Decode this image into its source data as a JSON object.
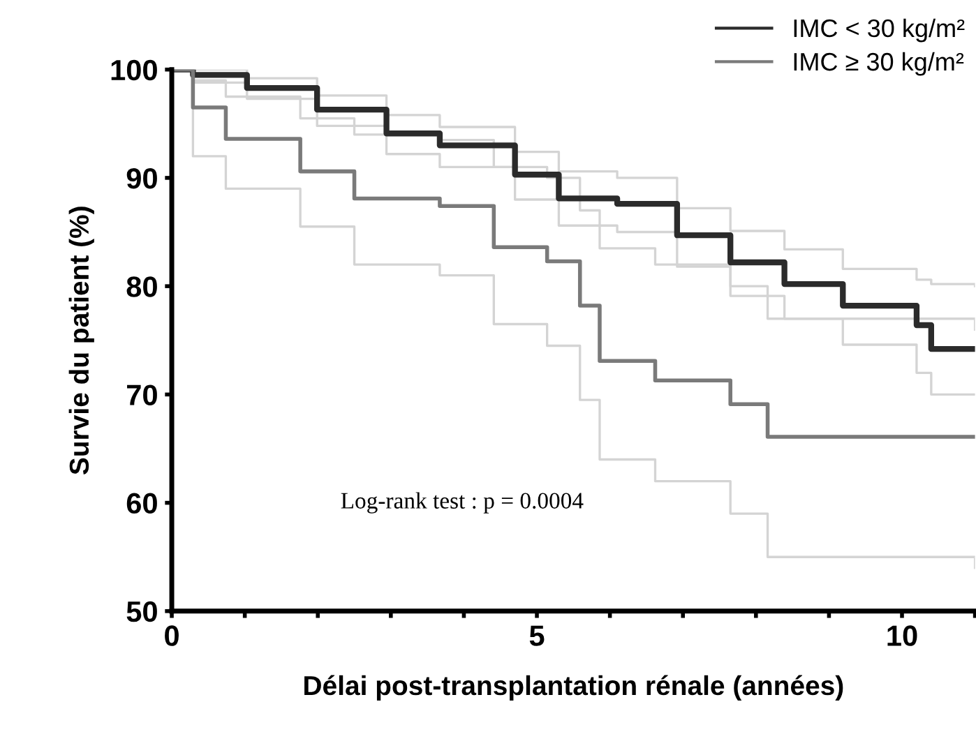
{
  "chart_data": {
    "type": "step",
    "ylabel": "Survie du patient (%)",
    "xlabel": "Délai post-transplantation rénale (années)",
    "annotations": [
      "Log-rank test : p = 0.0004"
    ],
    "xlim": [
      0,
      11
    ],
    "ylim": [
      50,
      100
    ],
    "xticks": [
      0,
      {
        "value": 1,
        "label": null
      },
      {
        "value": 2,
        "label": null
      },
      {
        "value": 3,
        "label": null
      },
      {
        "value": 4,
        "label": null
      },
      5,
      {
        "value": 6,
        "label": null
      },
      {
        "value": 7,
        "label": null
      },
      {
        "value": 8,
        "label": null
      },
      {
        "value": 9,
        "label": null
      },
      10,
      {
        "value": 11,
        "label": null
      }
    ],
    "yticks": [
      50,
      60,
      70,
      80,
      90,
      100
    ],
    "grid": false,
    "legend": "top right",
    "marker": "none",
    "line_style": "solid",
    "series": [
      {
        "color": "#d4d4d4",
        "x": [
          0,
          0.29,
          1.03,
          1.99,
          2.94,
          3.67,
          4.7,
          5.3,
          6.1,
          6.92,
          7.65,
          8.39,
          9.19,
          10.15,
          10.2,
          10.4,
          11
        ],
        "values": [
          100,
          100,
          99.2,
          97.6,
          95.8,
          94.7,
          92.4,
          90.6,
          90.0,
          87.2,
          85.1,
          83.4,
          81.6,
          81.6,
          80.6,
          80.2,
          80
        ]
      },
      {
        "color": "#d4d4d4",
        "x": [
          0,
          0.29,
          1.03,
          1.99,
          2.94,
          3.67,
          4.7,
          5.3,
          6.1,
          6.92,
          7.65,
          8.39,
          9.19,
          10.15,
          10.2,
          10.4,
          11
        ],
        "values": [
          100,
          98.8,
          97.3,
          94.8,
          92.2,
          91.0,
          88.0,
          85.6,
          85.0,
          81.8,
          79.1,
          77.0,
          74.6,
          74.6,
          72,
          70,
          70
        ]
      },
      {
        "color": "#d4d4d4",
        "x": [
          0,
          0.29,
          0.74,
          1.24,
          1.76,
          2.5,
          3.67,
          4.41,
          5.14,
          5.59,
          5.86,
          6.62,
          7.65,
          8.16,
          11
        ],
        "values": [
          100,
          99,
          97.5,
          97.5,
          95.5,
          94,
          93.5,
          91,
          90,
          87,
          83.5,
          82,
          80,
          77,
          76
        ]
      },
      {
        "color": "#d4d4d4",
        "x": [
          0,
          0.29,
          0.74,
          1.24,
          1.76,
          2.5,
          3.67,
          4.41,
          5.14,
          5.59,
          5.86,
          6.62,
          7.65,
          8.16,
          11
        ],
        "values": [
          100,
          92,
          89,
          89,
          85.5,
          82,
          81,
          76.5,
          74.5,
          69.5,
          64,
          62,
          59,
          55,
          54
        ]
      },
      {
        "name": "IMC < 30 kg/m²",
        "color": "#2b2b2b",
        "x": [
          0,
          0.29,
          1.03,
          1.99,
          2.94,
          3.67,
          4.7,
          5.3,
          6.1,
          6.92,
          7.65,
          8.39,
          9.19,
          10.15,
          10.2,
          10.4,
          11
        ],
        "values": [
          100,
          99.5,
          98.3,
          96.3,
          94.1,
          93.0,
          90.3,
          88.1,
          87.6,
          84.7,
          82.2,
          80.2,
          78.2,
          78.2,
          76.4,
          74.2,
          74.2
        ]
      },
      {
        "name": "IMC ≥ 30 kg/m²",
        "color": "#7a7a7a",
        "x": [
          0,
          0.29,
          0.74,
          1.24,
          1.76,
          2.5,
          3.67,
          4.41,
          5.14,
          5.59,
          5.86,
          6.62,
          7.65,
          8.16,
          11
        ],
        "values": [
          100,
          96.5,
          93.6,
          93.6,
          90.6,
          88.1,
          87.4,
          83.6,
          82.3,
          78.2,
          73.1,
          71.3,
          69.1,
          66.1,
          66.1
        ]
      }
    ]
  }
}
